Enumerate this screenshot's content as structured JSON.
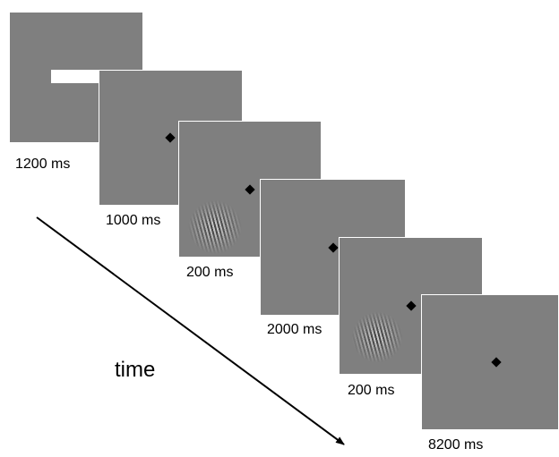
{
  "frames": [
    {
      "duration": "1200 ms",
      "fixation": false,
      "gabor": false
    },
    {
      "duration": "1000 ms",
      "fixation": true,
      "gabor": false
    },
    {
      "duration": "200 ms",
      "fixation": true,
      "gabor": true
    },
    {
      "duration": "2000 ms",
      "fixation": true,
      "gabor": false
    },
    {
      "duration": "200 ms",
      "fixation": true,
      "gabor": true
    },
    {
      "duration": "8200 ms",
      "fixation": true,
      "gabor": false
    }
  ],
  "time_label": "time",
  "colors": {
    "frame": "#7f7f7f",
    "fixation": "#000000",
    "arrow": "#000000"
  }
}
